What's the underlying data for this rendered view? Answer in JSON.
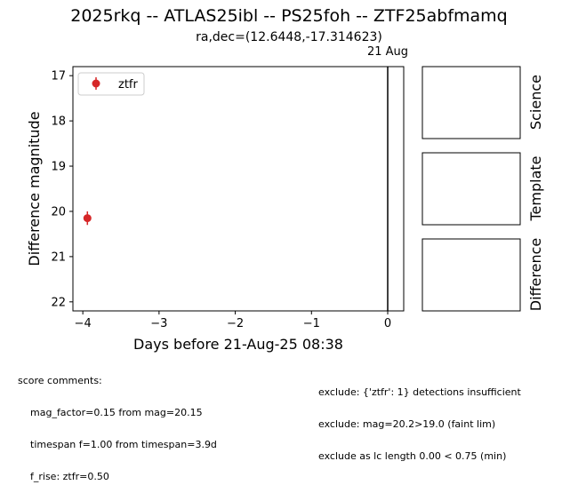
{
  "title": "2025rkq -- ATLAS25ibl -- PS25foh -- ZTF25abfmamq",
  "subtitle": "ra,dec=(12.6448,-17.314623)",
  "chart_data": {
    "type": "scatter",
    "xlabel": "Days before 21-Aug-25 08:38",
    "ylabel": "Difference magnitude",
    "xlim": [
      -4.13,
      0.21
    ],
    "ylim": [
      22.2,
      16.8
    ],
    "y_inverted": true,
    "xticks": [
      -4,
      -3,
      -2,
      -1,
      0
    ],
    "xtick_labels": [
      "−4",
      "−3",
      "−2",
      "−1",
      "0"
    ],
    "yticks": [
      17,
      18,
      19,
      20,
      21,
      22
    ],
    "ytick_labels": [
      "17",
      "18",
      "19",
      "20",
      "21",
      "22"
    ],
    "grid": false,
    "legend_position": "top-left",
    "vline": {
      "x": 0,
      "label": "21 Aug"
    },
    "series": [
      {
        "name": "ztfr",
        "color": "#d62728",
        "points": [
          {
            "x": -3.94,
            "y": 20.15,
            "err": 0.15
          }
        ]
      }
    ]
  },
  "cutouts": [
    "Science",
    "Template",
    "Difference"
  ],
  "score_comments": {
    "heading": "score comments:",
    "left": [
      "mag_factor=0.15 from mag=20.15",
      "timespan f=1.00 from timespan=3.9d",
      "f_rise: ztfr=0.50"
    ],
    "right": [
      "exclude: {'ztfr': 1} detections insufficient",
      "exclude: mag=20.2>19.0 (faint lim)",
      "exclude as lc length 0.00 < 0.75 (min)"
    ]
  }
}
